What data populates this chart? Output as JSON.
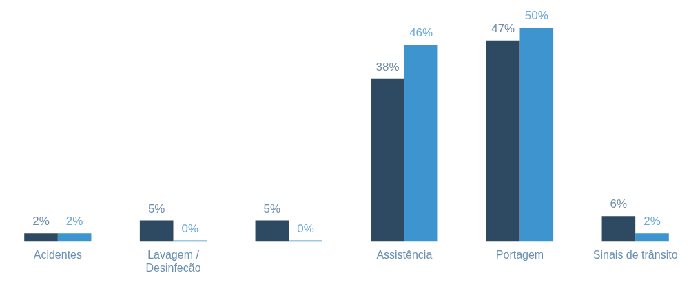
{
  "chart_data": {
    "type": "bar",
    "categories": [
      "Acidentes",
      "Lavagem / Desinfecão",
      null,
      "Assistência",
      "Portagem",
      "Sinais de trânsito"
    ],
    "series": [
      {
        "color": "#2e4a62",
        "values": [
          2,
          5,
          5,
          38,
          47,
          6
        ],
        "value_labels": [
          "2%",
          "5%",
          "5%",
          "38%",
          "47%",
          "6%"
        ]
      },
      {
        "color": "#3d94cf",
        "values": [
          2,
          0,
          0,
          46,
          50,
          2
        ],
        "value_labels": [
          "2%",
          "0%",
          "0%",
          "46%",
          "50%",
          "2%"
        ]
      }
    ],
    "grid": false,
    "legend": false
  }
}
